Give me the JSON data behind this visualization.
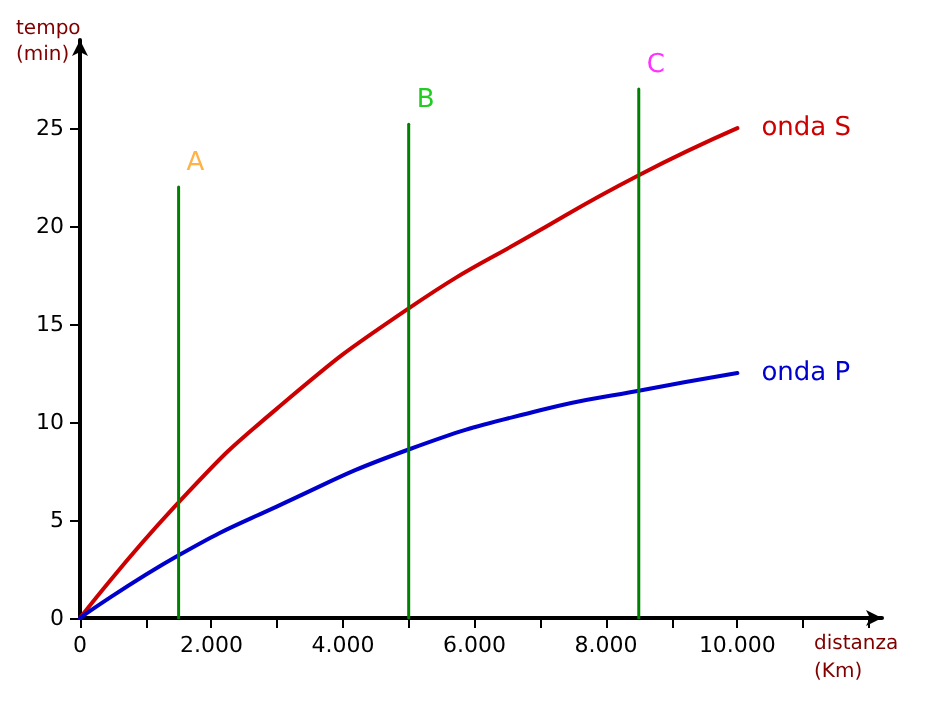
{
  "chart_data": {
    "type": "line",
    "xlabel": "distanza (Km)",
    "ylabel": "tempo (min)",
    "xlim": [
      0,
      12200
    ],
    "ylim": [
      0,
      29.5
    ],
    "xticks": [
      0,
      {
        "value": 1000,
        "label": null
      },
      {
        "value": 2000,
        "label": "2.000"
      },
      {
        "value": 3000,
        "label": null
      },
      {
        "value": 4000,
        "label": "4.000"
      },
      {
        "value": 5000,
        "label": null
      },
      {
        "value": 6000,
        "label": "6.000"
      },
      {
        "value": 7000,
        "label": null
      },
      {
        "value": 8000,
        "label": "8.000"
      },
      {
        "value": 9000,
        "label": null
      },
      {
        "value": 10000,
        "label": "10.000"
      },
      {
        "value": 11000,
        "label": null
      },
      {
        "value": 12000,
        "label": null
      }
    ],
    "yticks": [
      0,
      5,
      10,
      15,
      20,
      25
    ],
    "grid": false,
    "legend": false,
    "line_style": "solid",
    "series": [
      {
        "name": "onda S",
        "color": "#cc0000",
        "x": [
          0,
          1500,
          3000,
          5000,
          7000,
          8500,
          10000
        ],
        "values": [
          0,
          5.9,
          10.7,
          15.8,
          19.8,
          22.6,
          25
        ]
      },
      {
        "name": "onda P",
        "color": "#0000cc",
        "x": [
          0,
          1500,
          3000,
          5000,
          7000,
          8500,
          10000
        ],
        "values": [
          0,
          3.2,
          5.7,
          8.6,
          10.6,
          11.6,
          12.5
        ]
      },
      {
        "name": "A",
        "color": "#008000",
        "x": [
          1500,
          1500
        ],
        "values": [
          0,
          22
        ]
      },
      {
        "name": "B",
        "color": "#008000",
        "x": [
          5000,
          5000
        ],
        "values": [
          0,
          25.2
        ]
      },
      {
        "name": "C",
        "color": "#008000",
        "x": [
          8500,
          8500
        ],
        "values": [
          0,
          27
        ]
      }
    ]
  }
}
